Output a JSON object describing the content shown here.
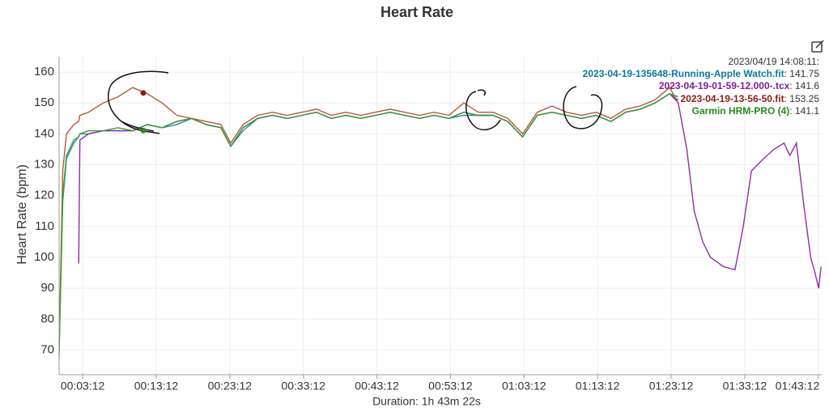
{
  "chart_data": {
    "type": "line",
    "title": "Heart Rate",
    "y_label": "Heart Rate (bpm)",
    "x_label": "Duration: 1h 43m 22s",
    "tooltip_time": "2023/04/19 14:08:11:",
    "xlim": [
      0,
      6220
    ],
    "ylim": [
      62,
      165
    ],
    "xticks": [
      {
        "value": 192,
        "label": "00:03:12"
      },
      {
        "value": 792,
        "label": "00:13:12"
      },
      {
        "value": 1392,
        "label": "00:23:12"
      },
      {
        "value": 1992,
        "label": "00:33:12"
      },
      {
        "value": 2592,
        "label": "00:43:12"
      },
      {
        "value": 3192,
        "label": "00:53:12"
      },
      {
        "value": 3792,
        "label": "01:03:12"
      },
      {
        "value": 4392,
        "label": "01:13:12"
      },
      {
        "value": 4992,
        "label": "01:23:12"
      },
      {
        "value": 5592,
        "label": "01:33:12"
      },
      {
        "value": 6192,
        "label": "01:43:12"
      }
    ],
    "yticks": [
      70,
      80,
      90,
      100,
      110,
      120,
      130,
      140,
      150,
      160
    ],
    "grid": true,
    "x": [
      0,
      30,
      60,
      120,
      160,
      170,
      240,
      360,
      480,
      600,
      720,
      840,
      960,
      1080,
      1200,
      1320,
      1400,
      1500,
      1620,
      1740,
      1860,
      1980,
      2100,
      2220,
      2340,
      2460,
      2580,
      2700,
      2820,
      2940,
      3060,
      3180,
      3300,
      3420,
      3540,
      3660,
      3780,
      3900,
      4020,
      4140,
      4260,
      4380,
      4500,
      4620,
      4740,
      4860,
      4980,
      5050,
      5120,
      5180,
      5250,
      5313,
      5420,
      5513,
      5580,
      5647,
      5747,
      5830,
      5913,
      5960,
      6013,
      6080,
      6130,
      6165,
      6195,
      6215
    ],
    "series": [
      {
        "name": "2023-04-19-135648-Running-Apple Watch.fit",
        "color": "#2a8aa8",
        "label_color": "#0e7a99",
        "hover_value": 141.75,
        "values": [
          72,
          118,
          132,
          137,
          139,
          140,
          140,
          141,
          141,
          141,
          143,
          142,
          143,
          145,
          143,
          142,
          136,
          141,
          145,
          146,
          145,
          146,
          147,
          145,
          146,
          145,
          146,
          147,
          146,
          145,
          146,
          145,
          146,
          146,
          146,
          144,
          139,
          146,
          147,
          146,
          145,
          146,
          144,
          147,
          148,
          150,
          153,
          151,
          null,
          null,
          null,
          null,
          null,
          null,
          null,
          null,
          null,
          null,
          null,
          null,
          null,
          null,
          null,
          null,
          null,
          null
        ]
      },
      {
        "name": "2023-04-19-01-59-12.000-.tcx",
        "color": "#8e2ea6",
        "label_color": "#7b1f9a",
        "hover_value": 141.6,
        "values": [
          null,
          null,
          null,
          null,
          98,
          138,
          140,
          141,
          141,
          141,
          143,
          142,
          144,
          145,
          143,
          142,
          136,
          142,
          145,
          146,
          145,
          146,
          147,
          145,
          146,
          145,
          146,
          147,
          146,
          145,
          146,
          145,
          147,
          146,
          146,
          144,
          139,
          146,
          147,
          146,
          145,
          146,
          144,
          147,
          148,
          150,
          153,
          150,
          135,
          115,
          105,
          100,
          97,
          96,
          110,
          128,
          132,
          135,
          137,
          133,
          137,
          115,
          100,
          95,
          90,
          97
        ]
      },
      {
        "name": "2023-04-19-13-56-50.fit",
        "color": "#b45a3c",
        "label_color": "#8b1c12",
        "hover_value": 153.25,
        "values": [
          70,
          128,
          140,
          143,
          144,
          146,
          147,
          150,
          152,
          155,
          153,
          150,
          146,
          145,
          144,
          143,
          137,
          143,
          146,
          147,
          146,
          147,
          148,
          146,
          147,
          146,
          147,
          148,
          147,
          146,
          147,
          146,
          150,
          147,
          147,
          145,
          140,
          147,
          149,
          147,
          146,
          147,
          145,
          148,
          149,
          151,
          155,
          150,
          null,
          null,
          null,
          null,
          null,
          null,
          null,
          null,
          null,
          null,
          null,
          null,
          null,
          null,
          null,
          null,
          null,
          null
        ]
      },
      {
        "name": "Garmin HRM-PRO (4)",
        "color": "#3c9a32",
        "label_color": "#2a8a1e",
        "hover_value": 141.1,
        "values": [
          68,
          120,
          133,
          138,
          139,
          140,
          141,
          141,
          142,
          141,
          143,
          142,
          144,
          145,
          143,
          142,
          136,
          142,
          145,
          146,
          145,
          146,
          147,
          145,
          146,
          145,
          146,
          147,
          146,
          145,
          146,
          145,
          147,
          146,
          146,
          144,
          139,
          146,
          147,
          146,
          145,
          146,
          144,
          147,
          148,
          150,
          153,
          152,
          null,
          null,
          null,
          null,
          null,
          null,
          null,
          null,
          null,
          null,
          null,
          null,
          null,
          null,
          null,
          null,
          null,
          null
        ]
      }
    ]
  }
}
